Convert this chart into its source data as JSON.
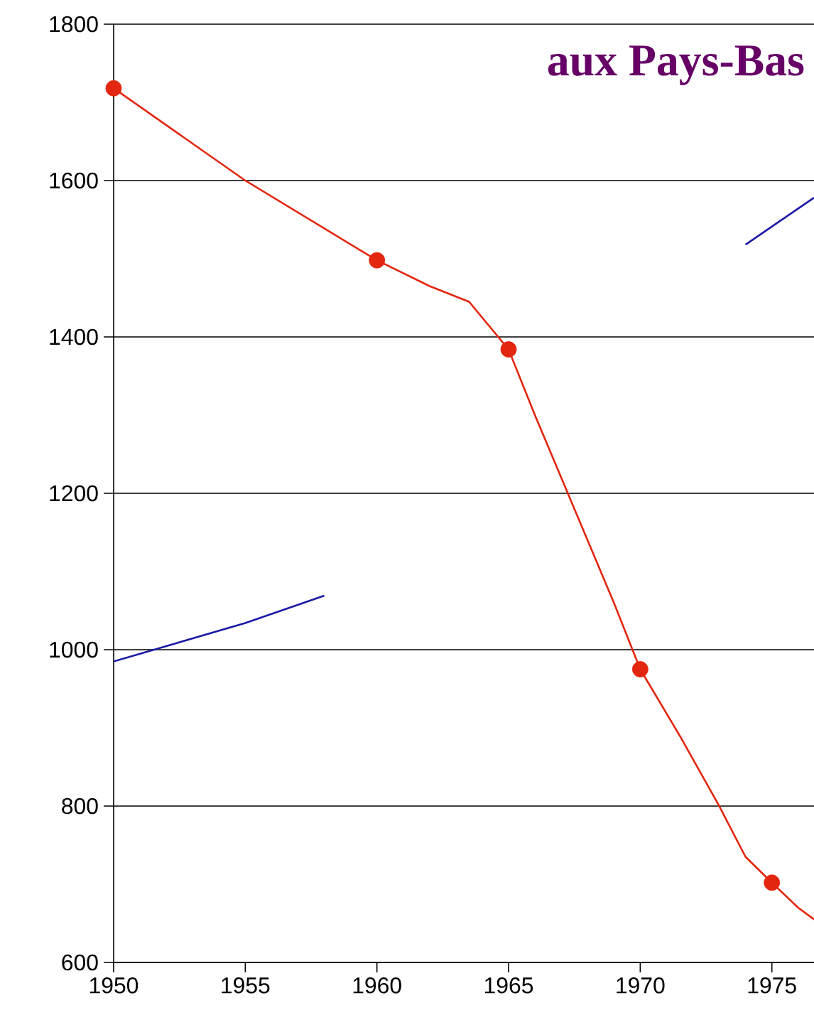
{
  "chart_data": {
    "type": "line",
    "title": "aux Pays-Bas",
    "xlim": [
      1950,
      1976.6
    ],
    "ylim": [
      600,
      1800
    ],
    "xticks": [
      1950,
      1955,
      1960,
      1965,
      1970,
      1975
    ],
    "yticks": [
      600,
      800,
      1000,
      1200,
      1400,
      1600,
      1800
    ],
    "grid": "y",
    "line_style": "solid",
    "series": [
      {
        "color": "#e3260f",
        "marker": "none",
        "x": [
          1950,
          1955,
          1960,
          1962,
          1963.5,
          1965,
          1966,
          1968,
          1969,
          1970,
          1971.5,
          1973,
          1974,
          1975,
          1976,
          1976.6
        ],
        "values": [
          1718,
          1600,
          1498,
          1465,
          1445,
          1384,
          1300,
          1140,
          1060,
          975,
          890,
          800,
          735,
          702,
          670,
          655
        ]
      },
      {
        "type": "scatter",
        "color": "#e3260f",
        "marker": "circle",
        "x": [
          1950,
          1960,
          1965,
          1970,
          1975
        ],
        "values": [
          1718,
          1498,
          1384,
          975,
          702
        ]
      },
      {
        "color": "#1a1aa6",
        "marker": "none",
        "x": [
          1950,
          1955,
          1958,
          1960,
          1974,
          1976.6
        ],
        "values": [
          985,
          1034,
          1069,
          null,
          1518,
          1578
        ]
      }
    ]
  }
}
